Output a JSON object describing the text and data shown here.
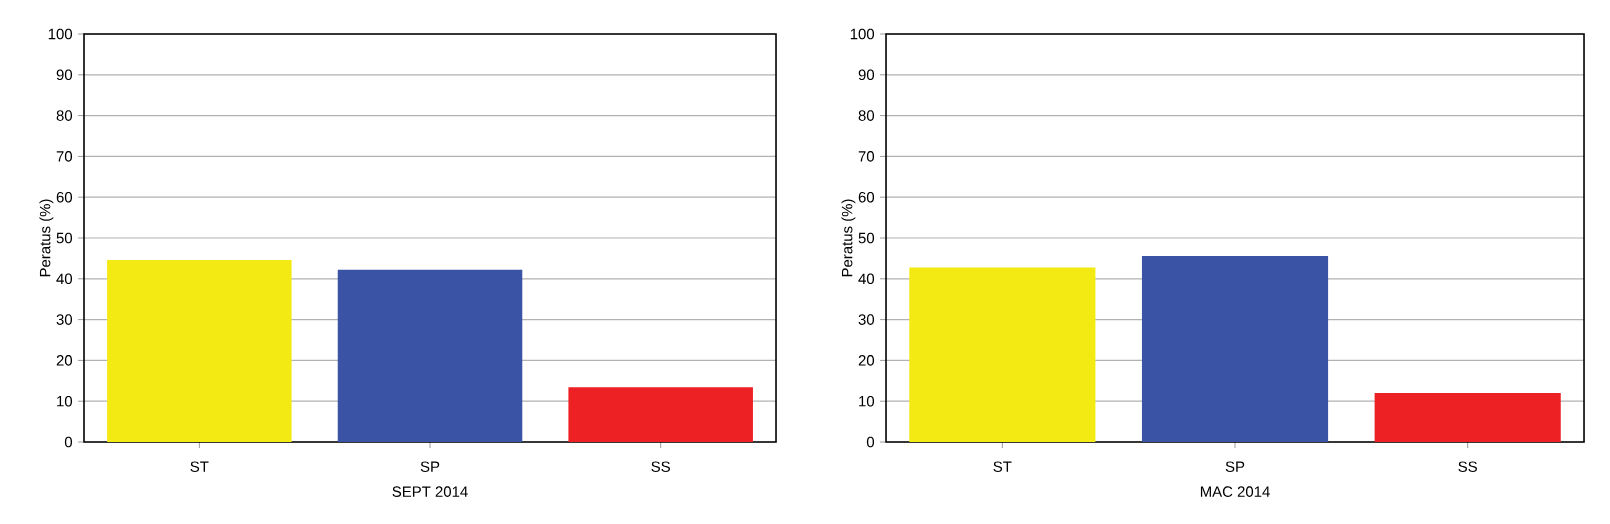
{
  "chart_data": [
    {
      "type": "bar",
      "xlabel": "SEPT 2014",
      "ylabel": "Peratus (%)",
      "categories": [
        "ST",
        "SP",
        "SS"
      ],
      "values": [
        44.6,
        42.2,
        13.4
      ],
      "colors": [
        "#f3ea14",
        "#3a53a4",
        "#ed2024"
      ],
      "ylim": [
        0,
        100
      ],
      "yticks": [
        0,
        10,
        20,
        30,
        40,
        50,
        60,
        70,
        80,
        90,
        100
      ],
      "grid": "y"
    },
    {
      "type": "bar",
      "xlabel": "MAC 2014",
      "ylabel": "Peratus (%)",
      "categories": [
        "ST",
        "SP",
        "SS"
      ],
      "values": [
        42.8,
        45.6,
        12.0
      ],
      "colors": [
        "#f3ea14",
        "#3a53a4",
        "#ed2024"
      ],
      "ylim": [
        0,
        100
      ],
      "yticks": [
        0,
        10,
        20,
        30,
        40,
        50,
        60,
        70,
        80,
        90,
        100
      ],
      "grid": "y"
    }
  ]
}
